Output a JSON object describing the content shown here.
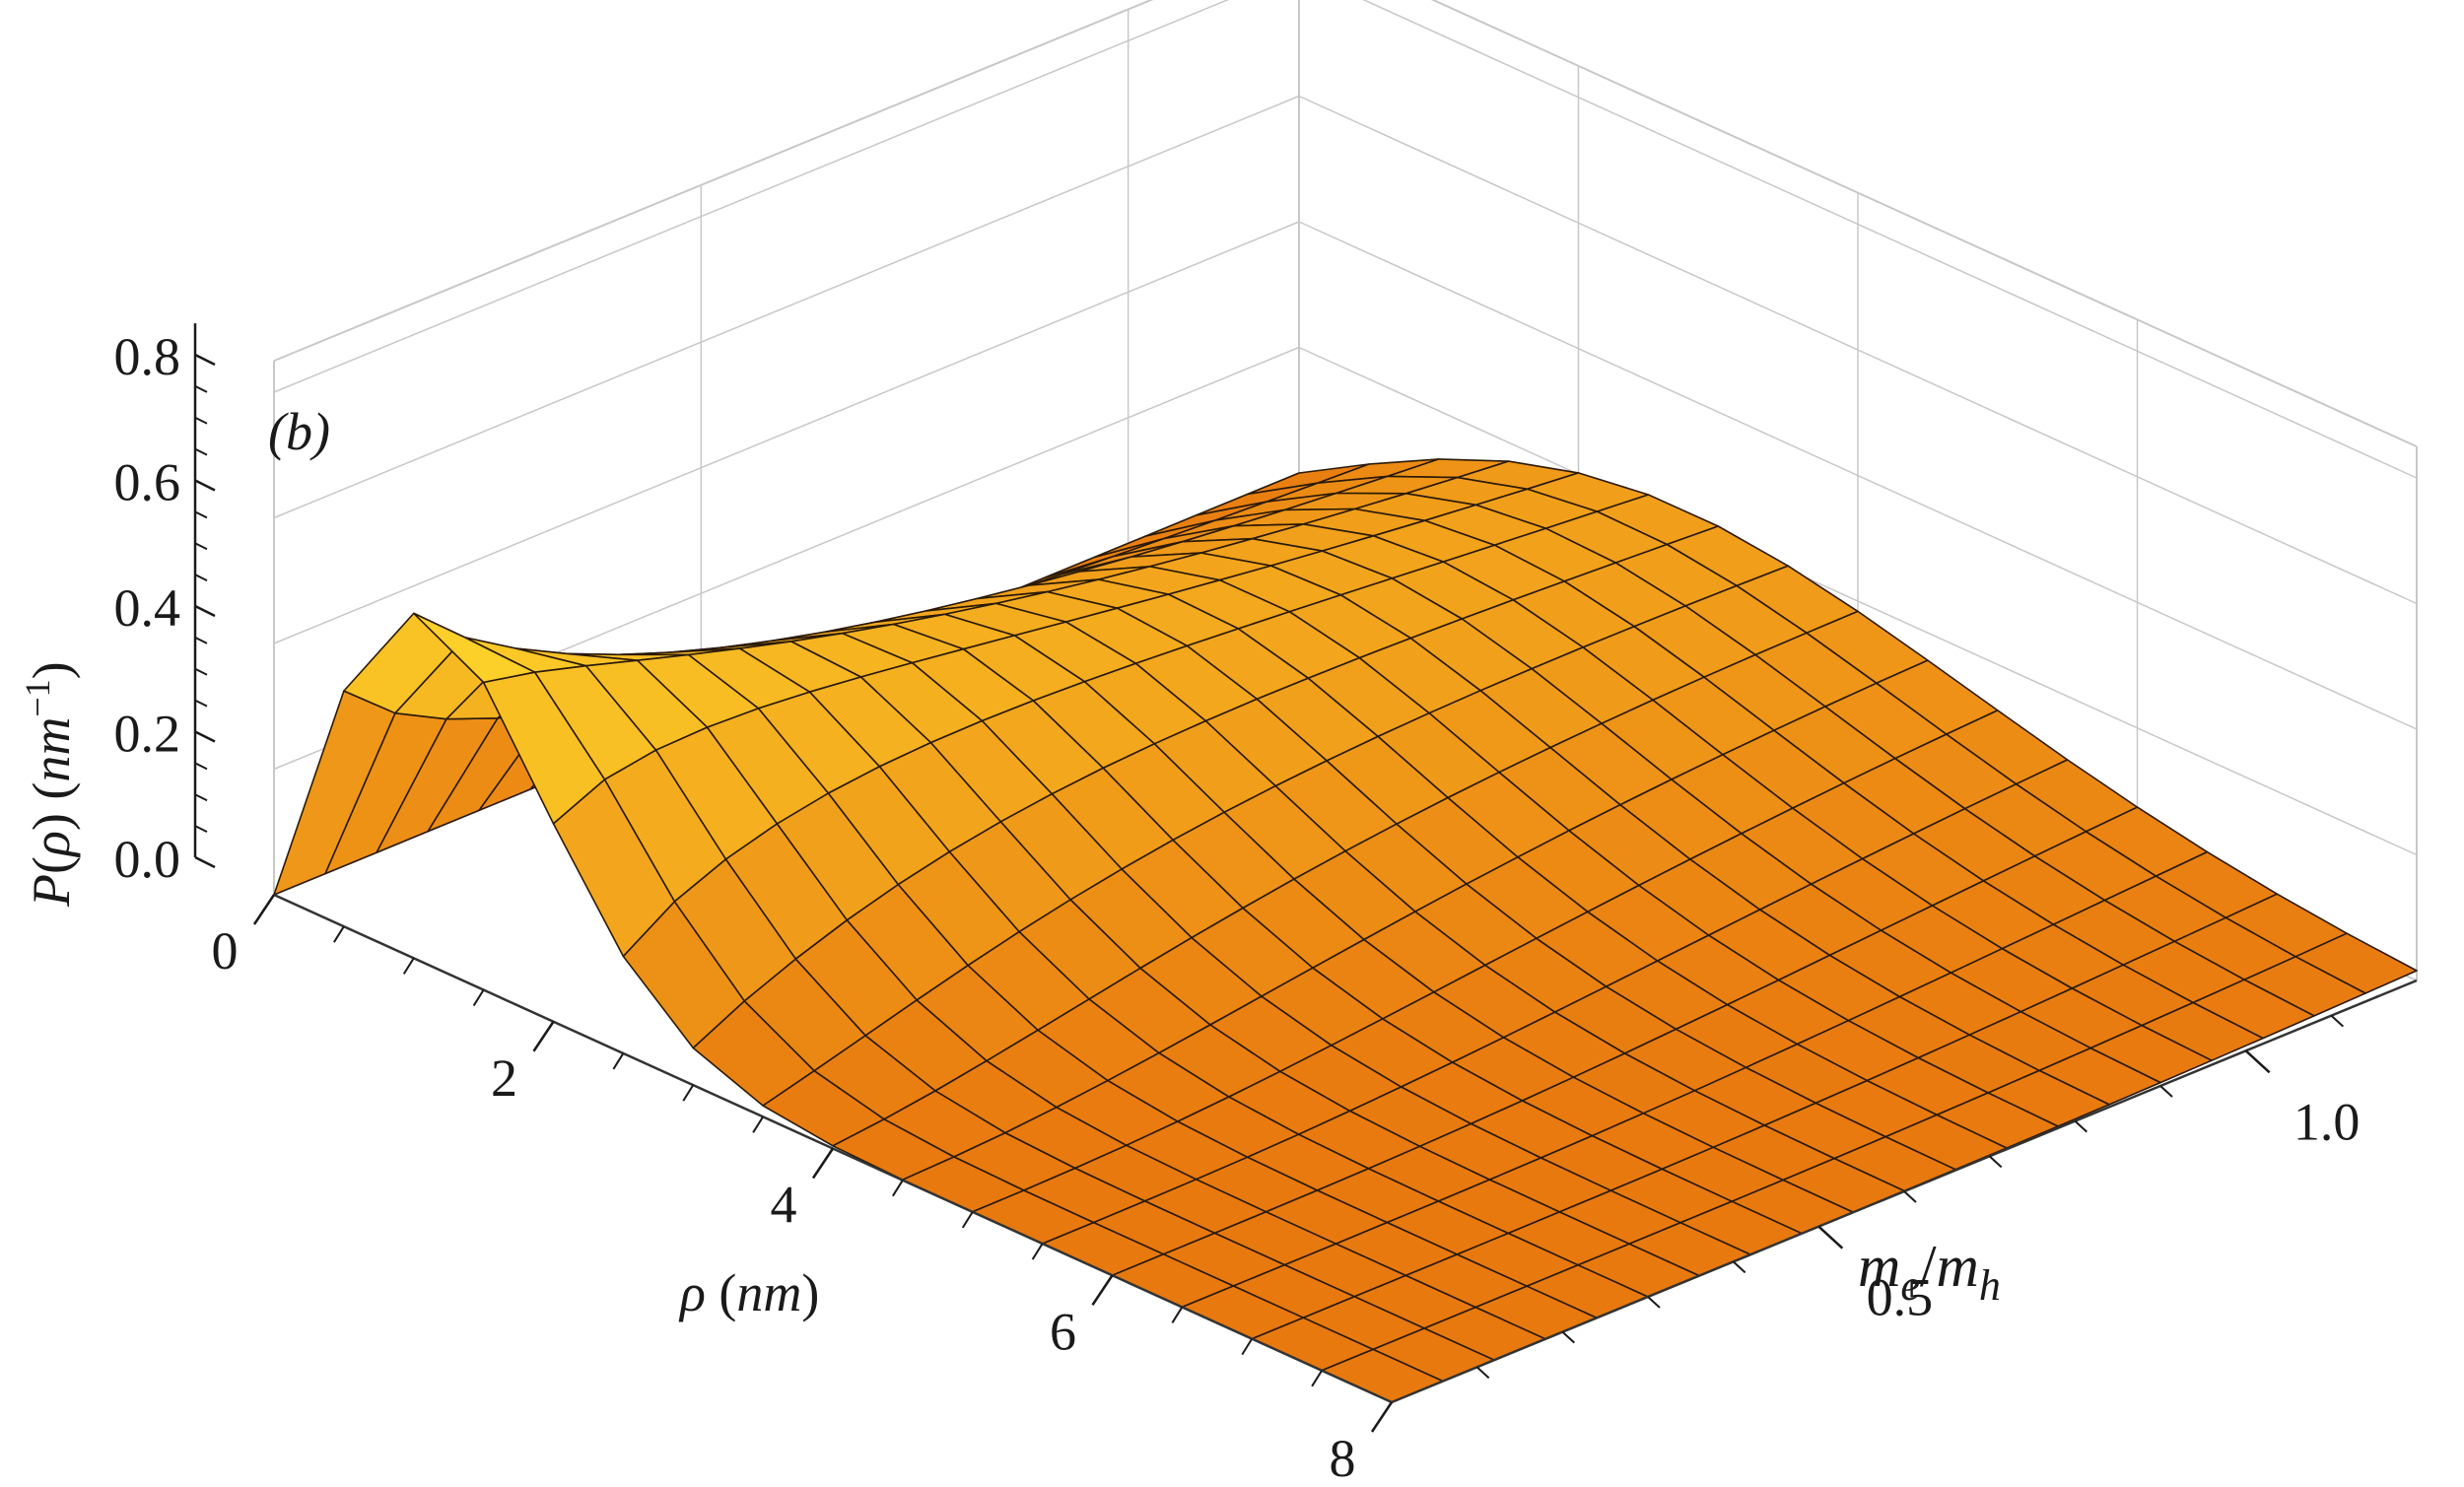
{
  "chart_data": {
    "type": "surface3d",
    "panel_label": "(b)",
    "x_axis": {
      "label_parts": [
        "ρ",
        " (",
        "nm",
        ")"
      ],
      "range": [
        0,
        8
      ],
      "ticks": [
        "0",
        "2",
        "4",
        "6",
        "8"
      ]
    },
    "y_axis": {
      "label_parts": [
        "m",
        "e",
        "/",
        "m",
        "h"
      ],
      "range": [
        0,
        1.2
      ],
      "ticks": [
        "0.5",
        "1.0"
      ]
    },
    "z_axis": {
      "label_parts": [
        "P",
        "(",
        "ρ",
        ") (",
        "nm",
        "−1",
        ")"
      ],
      "range": [
        0,
        0.85
      ],
      "ticks": [
        "0.0",
        "0.2",
        "0.4",
        "0.6",
        "0.8"
      ]
    },
    "surface": {
      "rho_grid": [
        0,
        0.5,
        1,
        1.5,
        2,
        2.5,
        3,
        3.5,
        4,
        4.5,
        5,
        5.5,
        6,
        6.5,
        7,
        7.5,
        8
      ],
      "mass_ratio_grid": [
        0,
        0.06,
        0.12,
        0.18,
        0.24,
        0.3,
        0.36,
        0.42,
        0.48,
        0.54,
        0.6,
        0.66,
        0.72,
        0.78,
        0.84,
        0.9,
        0.96,
        1.02,
        1.08,
        1.14,
        1.2
      ],
      "description_formula": "P = 2*rho/a^2 * exp(-rho^2/a^2), a decreasing with mass ratio",
      "peak_value": 0.82,
      "peak_at": {
        "rho": 0.6,
        "mass_ratio": 0.0
      }
    },
    "colors": {
      "surface_low": "#e8790f",
      "surface_high": "#fdd22a",
      "mesh": "#2a1a08",
      "box": "#c8c8c8"
    }
  }
}
